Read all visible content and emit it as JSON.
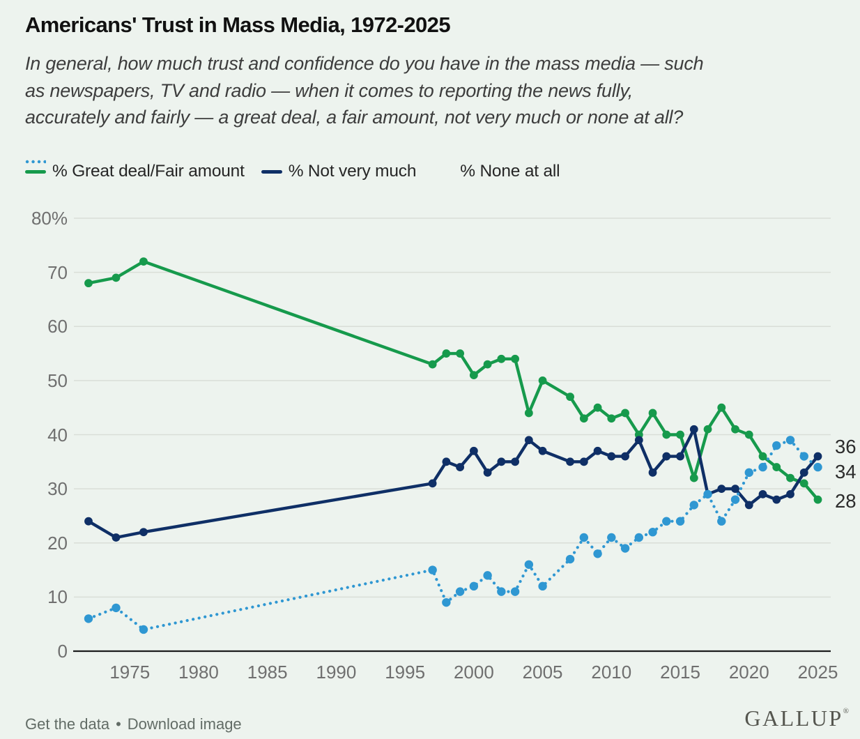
{
  "title": "Americans' Trust in Mass Media, 1972-2025",
  "subtitle_lines": [
    "In general, how much trust and confidence do you have in the mass media — such",
    "as newspapers, TV and radio — when it comes to reporting the news fully,",
    "accurately and fairly — a great deal, a fair amount, not very much or none at all?"
  ],
  "colors": {
    "background": "#edf3ee",
    "grid": "#d9ded7",
    "axis": "#1d1d1d",
    "tick_text": "#6f6f6f"
  },
  "chart_data": {
    "type": "line",
    "x": [
      1972,
      1974,
      1976,
      1997,
      1998,
      1999,
      2000,
      2001,
      2002,
      2003,
      2004,
      2005,
      2007,
      2008,
      2009,
      2010,
      2011,
      2012,
      2013,
      2014,
      2015,
      2016,
      2017,
      2018,
      2019,
      2020,
      2021,
      2022,
      2023,
      2024,
      2025
    ],
    "series": [
      {
        "name": "great-deal-fair-amount",
        "label": "% Great deal/Fair amount",
        "color": "#169a4c",
        "style": "solid",
        "end_label": "28",
        "values": [
          68,
          69,
          72,
          53,
          55,
          55,
          51,
          53,
          54,
          54,
          44,
          50,
          47,
          43,
          45,
          43,
          44,
          40,
          44,
          40,
          40,
          32,
          41,
          45,
          41,
          40,
          36,
          34,
          32,
          31,
          28
        ]
      },
      {
        "name": "not-very-much",
        "label": "% Not very much",
        "color": "#0f2f66",
        "style": "solid",
        "end_label": "36",
        "values": [
          24,
          21,
          22,
          31,
          35,
          34,
          37,
          33,
          35,
          35,
          39,
          37,
          35,
          35,
          37,
          36,
          36,
          39,
          33,
          36,
          36,
          41,
          29,
          30,
          30,
          27,
          29,
          28,
          29,
          33,
          36
        ]
      },
      {
        "name": "none-at-all",
        "label": "% None at all",
        "color": "#2f97d2",
        "style": "dotted",
        "end_label": "34",
        "values": [
          6,
          8,
          4,
          15,
          9,
          11,
          12,
          14,
          11,
          11,
          16,
          12,
          17,
          21,
          18,
          21,
          19,
          21,
          22,
          24,
          24,
          27,
          29,
          24,
          28,
          33,
          34,
          38,
          39,
          36,
          34
        ]
      }
    ],
    "xlim": [
      1972,
      2025
    ],
    "ylim": [
      0,
      80
    ],
    "x_tick_values": [
      1975,
      1980,
      1985,
      1990,
      1995,
      2000,
      2005,
      2010,
      2015,
      2020,
      2025
    ],
    "x_tick_labels": [
      "1975",
      "1980",
      "1985",
      "1990",
      "1995",
      "2000",
      "2005",
      "2010",
      "2015",
      "2020",
      "2025"
    ],
    "y_tick_values": [
      0,
      10,
      20,
      30,
      40,
      50,
      60,
      70,
      80
    ],
    "y_tick_labels": [
      "0",
      "10",
      "20",
      "30",
      "40",
      "50",
      "60",
      "70",
      "80%"
    ],
    "grid": true,
    "legend_position": "top",
    "title": "Americans' Trust in Mass Media, 1972-2025"
  },
  "footer": {
    "links": [
      {
        "label": "Get the data"
      },
      {
        "label": "Download image"
      }
    ],
    "separator": "•"
  },
  "branding": {
    "logo_text": "GALLUP",
    "logo_mark": "®"
  }
}
